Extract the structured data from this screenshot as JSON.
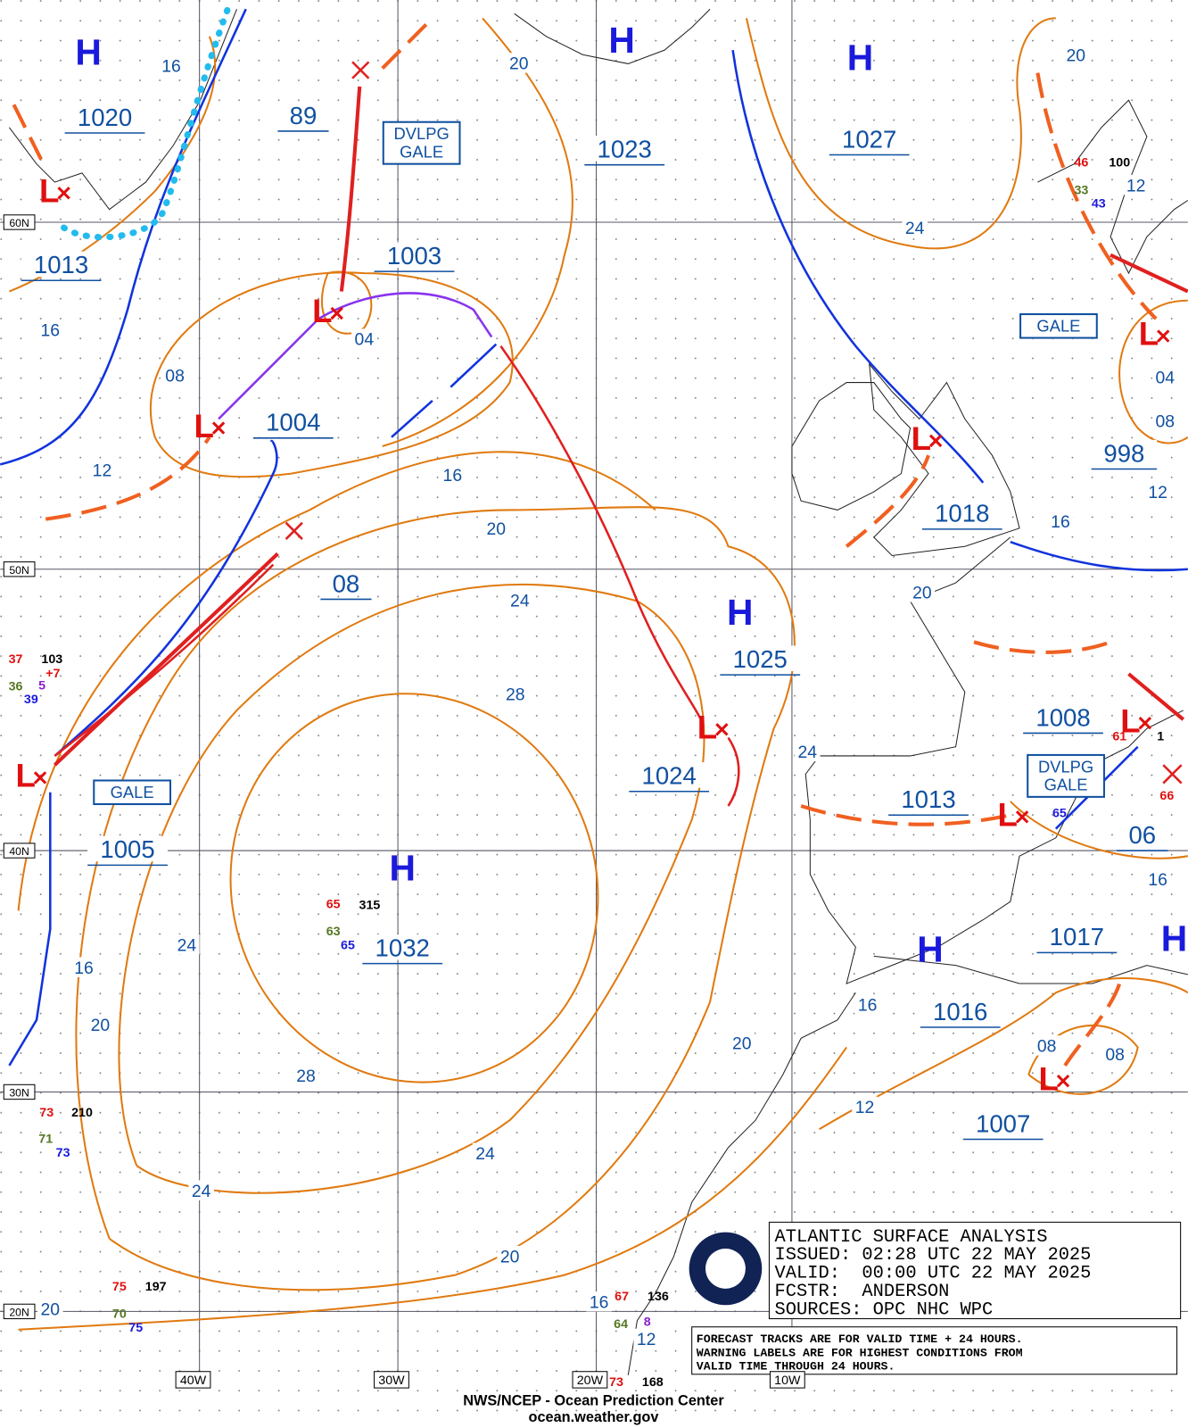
{
  "header": {
    "title": "ATLANTIC SURFACE ANALYSIS",
    "issued": "ISSUED: 02:28 UTC 22 MAY 2025",
    "valid": "VALID:  00:00 UTC 22 MAY 2025",
    "forecaster": "FCSTR:  ANDERSON",
    "sources": "SOURCES: OPC NHC WPC"
  },
  "notes": [
    "FORECAST TRACKS ARE FOR VALID TIME + 24 HOURS.",
    "WARNING LABELS ARE FOR HIGHEST CONDITIONS FROM",
    "VALID TIME THROUGH 24 HOURS."
  ],
  "footer": [
    "NWS/NCEP - Ocean Prediction Center",
    "ocean.weather.gov"
  ],
  "latitude_labels": [
    "60N",
    "50N",
    "40N",
    "30N",
    "20N"
  ],
  "longitude_labels": [
    "40W",
    "30W",
    "20W",
    "10W"
  ],
  "highs": [
    "H",
    "H",
    "H",
    "H",
    "H",
    "H",
    "H"
  ],
  "lows": [
    "L",
    "L",
    "L",
    "L",
    "L",
    "L",
    "L",
    "L",
    "L",
    "L"
  ],
  "pressures": [
    "1020",
    "89",
    "1023",
    "1027",
    "1013",
    "1003",
    "1004",
    "08",
    "1018",
    "998",
    "1025",
    "1024",
    "1008",
    "1013",
    "1005",
    "06",
    "1032",
    "1017",
    "1016",
    "1007"
  ],
  "isobar_labels": [
    "16",
    "20",
    "20",
    "24",
    "12",
    "16",
    "04",
    "08",
    "12",
    "16",
    "20",
    "16",
    "12",
    "04",
    "08",
    "24",
    "20",
    "28",
    "24",
    "16",
    "24",
    "16",
    "16",
    "20",
    "08",
    "08",
    "20",
    "28",
    "12",
    "24",
    "24",
    "20",
    "20",
    "16",
    "12"
  ],
  "warnings": [
    [
      "DVLPG",
      "GALE"
    ],
    [
      "GALE"
    ],
    [
      "GALE"
    ],
    [
      "DVLPG",
      "GALE"
    ]
  ],
  "stations": [
    [
      "37",
      "103",
      "36",
      "5",
      "39",
      "+7"
    ],
    [
      "65",
      "315",
      "63",
      "65"
    ],
    [
      "73",
      "210",
      "71",
      "73"
    ],
    [
      "75",
      "197",
      "70",
      "75"
    ],
    [
      "67",
      "136",
      "64",
      "8"
    ],
    [
      "73",
      "168"
    ],
    [
      "46",
      "100",
      "33",
      "43"
    ],
    [
      "61",
      "1"
    ],
    [
      "65"
    ],
    [
      "66"
    ]
  ]
}
